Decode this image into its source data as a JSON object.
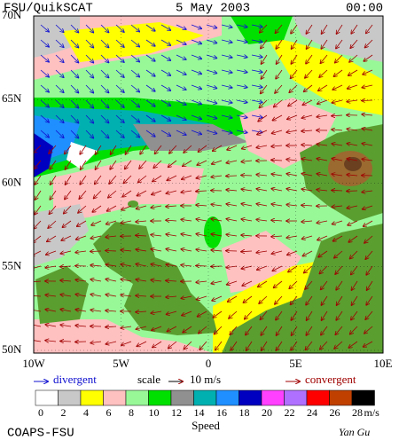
{
  "header": {
    "title": "FSU/QuikSCAT",
    "date": "5 May 2003",
    "time": "00:00"
  },
  "map": {
    "lat_labels": [
      "70N",
      "65N",
      "60N",
      "55N",
      "50N"
    ],
    "lon_labels": [
      "10W",
      "5W",
      "0",
      "5E",
      "10E"
    ]
  },
  "legend": {
    "divergent": "divergent",
    "scale": "scale",
    "scale_value": "10 m/s",
    "convergent": "convergent"
  },
  "colorbar": {
    "labels": [
      0,
      2,
      4,
      6,
      8,
      10,
      12,
      14,
      16,
      18,
      20,
      22,
      24,
      26,
      28
    ],
    "colors": [
      "#ffffff",
      "#c8c8c8",
      "#ffff00",
      "#ffc0c0",
      "#98f898",
      "#00e000",
      "#909090",
      "#00b0b0",
      "#1f8fff",
      "#0000c0",
      "#ff40ff",
      "#b070ff",
      "#ff0000",
      "#c04000",
      "#000000"
    ],
    "unit": "m/s",
    "title": "Speed"
  },
  "footer": {
    "credit": "COAPS-FSU",
    "author": "Yan Gu"
  }
}
